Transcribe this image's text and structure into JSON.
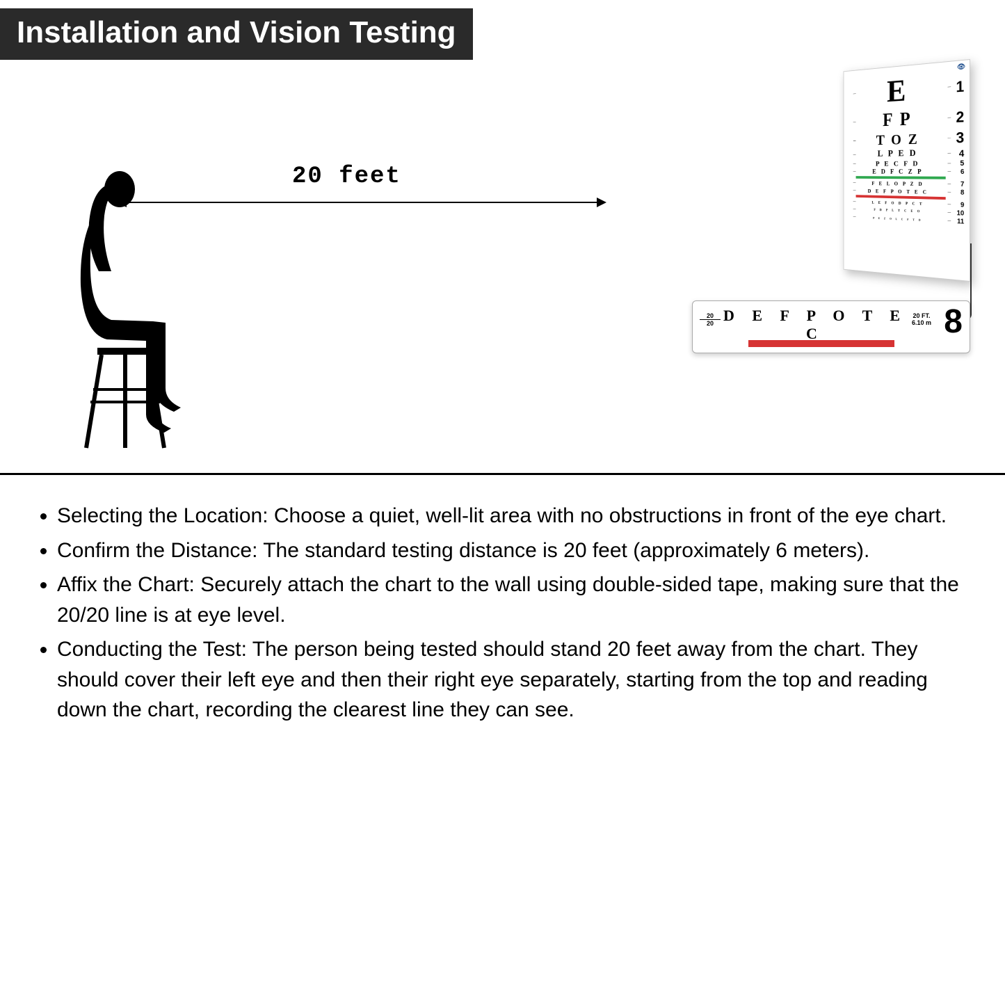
{
  "title": "Installation and Vision Testing",
  "distance_label": "20 feet",
  "colors": {
    "title_bg": "#2a2a2a",
    "title_fg": "#ffffff",
    "green_bar": "#2fa84f",
    "red_bar": "#d63333",
    "divider": "#000000"
  },
  "eye_chart": {
    "logo_text": "👁",
    "rows": [
      {
        "letters": "E",
        "fontsize": 48,
        "num": "1"
      },
      {
        "letters": "F P",
        "fontsize": 28,
        "num": "2"
      },
      {
        "letters": "T O Z",
        "fontsize": 22,
        "num": "3"
      },
      {
        "letters": "L P E D",
        "fontsize": 14,
        "num": "4"
      },
      {
        "letters": "P E C F D",
        "fontsize": 11,
        "num": "5"
      },
      {
        "letters": "E D F C Z P",
        "fontsize": 10,
        "num": "6",
        "bar_after": "green"
      },
      {
        "letters": "F E L O P Z D",
        "fontsize": 8,
        "num": "7"
      },
      {
        "letters": "D E F P O T E C",
        "fontsize": 8,
        "num": "8",
        "bar_after": "red"
      },
      {
        "letters": "L E F O D P C T",
        "fontsize": 6,
        "num": "9"
      },
      {
        "letters": "F D P L T C E O",
        "fontsize": 5,
        "num": "10"
      },
      {
        "letters": "P E Z O L C F T D",
        "fontsize": 4,
        "num": "11"
      }
    ]
  },
  "detail": {
    "fraction_top": "20",
    "fraction_bottom": "20",
    "letters": "D E F P O T E C",
    "meta_top": "20 FT.",
    "meta_bottom": "6.10 m",
    "row_number": "8",
    "underbar_color": "#d63333"
  },
  "instructions": [
    "Selecting the Location: Choose a quiet, well-lit area with no obstructions in front of the eye chart.",
    "Confirm the Distance: The standard testing distance is 20 feet (approximately 6 meters).",
    "Affix the Chart: Securely attach the chart to the wall using double-sided tape, making sure that the 20/20 line is at eye level.",
    "Conducting the Test: The person being tested should stand 20 feet away from the chart. They should cover their left eye and then their right eye separately, starting from the top and reading down the chart, recording the clearest line they can see."
  ]
}
